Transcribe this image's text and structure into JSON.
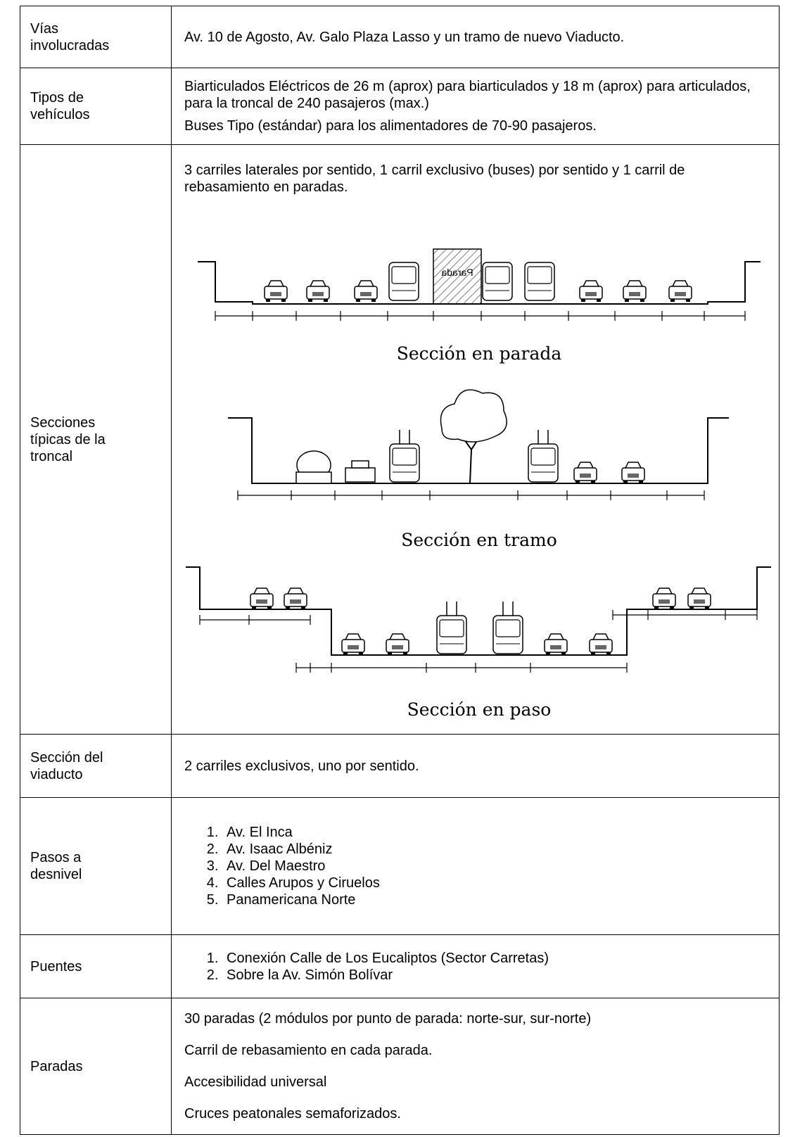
{
  "table": {
    "rows": [
      {
        "label": [
          "Vías",
          "involucradas"
        ],
        "paragraphs": [
          "Av. 10 de Agosto, Av. Galo Plaza Lasso y un tramo de nuevo Viaducto."
        ]
      },
      {
        "label": [
          "Tipos de",
          "vehículos"
        ],
        "paragraphs": [
          "Biarticulados Eléctricos de 26 m (aprox) para biarticulados y 18 m (aprox) para articulados, para la troncal de 240 pasajeros (max.)",
          "Buses Tipo (estándar) para los alimentadores de 70-90 pasajeros."
        ]
      },
      {
        "label": [
          "Secciones",
          "típicas de la",
          "troncal"
        ],
        "paragraphs": [
          "3 carriles laterales por sentido, 1 carril exclusivo (buses) por sentido y 1 carril de rebasamiento en paradas."
        ],
        "figure": {
          "stop_sign": "Parada",
          "captions": [
            "Sección en parada",
            "Sección en tramo",
            "Sección en paso"
          ]
        }
      },
      {
        "label": [
          "Sección del",
          "viaducto"
        ],
        "paragraphs": [
          "2 carriles exclusivos, uno por sentido."
        ]
      },
      {
        "label": [
          "Pasos a",
          "desnivel"
        ],
        "items": [
          "Av. El Inca",
          "Av. Isaac Albéniz",
          "Av. Del Maestro",
          "Calles Arupos y Ciruelos",
          "Panamericana Norte"
        ]
      },
      {
        "label": [
          "Puentes"
        ],
        "items": [
          "Conexión Calle de Los Eucaliptos (Sector Carretas)",
          "Sobre la Av. Simón Bolívar"
        ]
      },
      {
        "label": [
          "Paradas"
        ],
        "paragraphs": [
          "30 paradas (2 módulos por punto de parada: norte-sur, sur-norte)",
          "Carril de rebasamiento en cada parada.",
          "Accesibilidad universal",
          "Cruces peatonales semaforizados."
        ]
      }
    ]
  }
}
